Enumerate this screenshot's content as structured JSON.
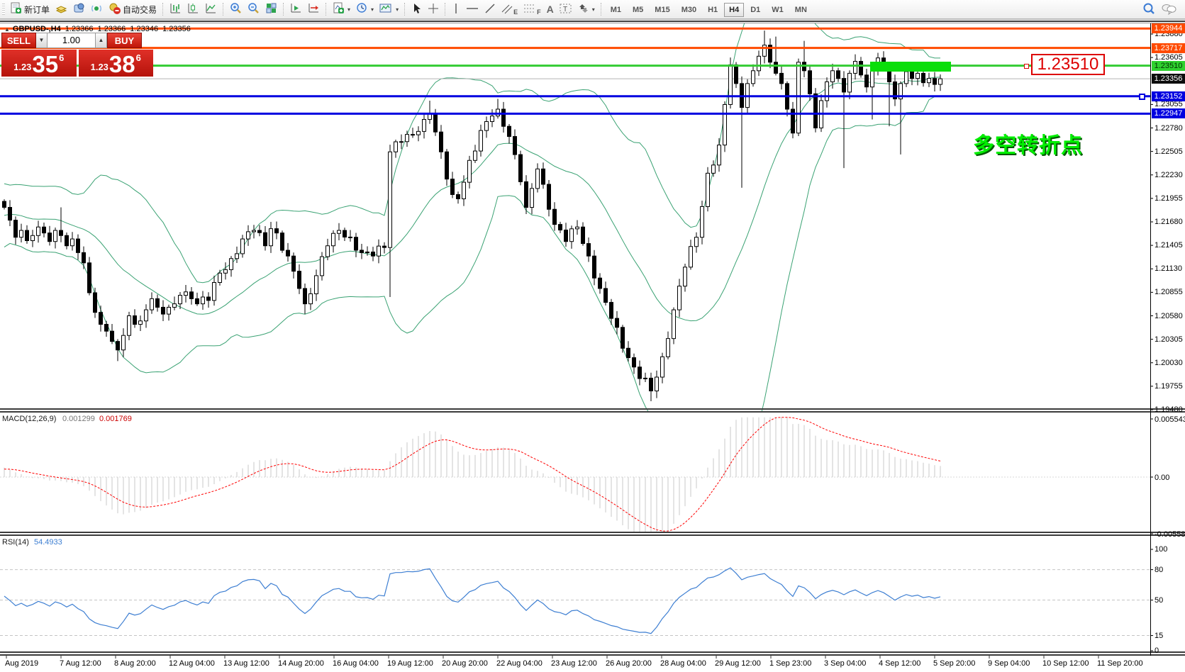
{
  "toolbar": {
    "new_order_label": "新订单",
    "autotrading_label": "自动交易",
    "channel_letter": "E",
    "fibo_letter": "F",
    "text_letter": "A",
    "label_letter": "T",
    "timeframes": [
      "M1",
      "M5",
      "M15",
      "M30",
      "H1",
      "H4",
      "D1",
      "W1",
      "MN"
    ],
    "active_timeframe": "H4"
  },
  "chart": {
    "collapse_arrow": "▲",
    "symbol_period": "GBPUSD-,H4",
    "ohlc": [
      "1.23366",
      "1.23366",
      "1.23346",
      "1.23356"
    ]
  },
  "one_click": {
    "sell_label": "SELL",
    "buy_label": "BUY",
    "volume": "1.00",
    "down_arrow": "▼",
    "up_arrow": "▲",
    "sell_small": "1.23",
    "sell_big": "35",
    "sell_sup": "6",
    "buy_small": "1.23",
    "buy_big": "38",
    "buy_sup": "6"
  },
  "annotations": {
    "turning_point_text": "多空转折点",
    "price_callout": "1.23510"
  },
  "price_axis": {
    "ticks": [
      "1.23880",
      "1.23605",
      "1.23055",
      "1.22780",
      "1.22505",
      "1.22230",
      "1.21955",
      "1.21680",
      "1.21405",
      "1.21130",
      "1.20855",
      "1.20580",
      "1.20305",
      "1.20030",
      "1.19755",
      "1.19480"
    ],
    "tick_values": [
      1.2388,
      1.23605,
      1.23055,
      1.2278,
      1.22505,
      1.2223,
      1.21955,
      1.2168,
      1.21405,
      1.2113,
      1.20855,
      1.2058,
      1.20305,
      1.2003,
      1.19755,
      1.1948
    ],
    "badges": [
      {
        "text": "1.23944",
        "price": 1.23944,
        "bg": "#ff4a00",
        "fg": "#ffffff"
      },
      {
        "text": "1.23717",
        "price": 1.23717,
        "bg": "#ff4a00",
        "fg": "#ffffff"
      },
      {
        "text": "1.23510",
        "price": 1.2351,
        "bg": "#2fd12f",
        "fg": "#033003"
      },
      {
        "text": "1.23356",
        "price": 1.23356,
        "bg": "#0d0d0d",
        "fg": "#ffffff"
      },
      {
        "text": "1.23152",
        "price": 1.23152,
        "bg": "#0000e0",
        "fg": "#ffffff"
      },
      {
        "text": "1.22947",
        "price": 1.22947,
        "bg": "#0000e0",
        "fg": "#ffffff"
      }
    ]
  },
  "macd_panel": {
    "label": "MACD(12,26,9)",
    "value_main": "0.001299",
    "value_signal": "0.001769",
    "axis": [
      {
        "text": "0.005543",
        "y": 586
      },
      {
        "text": "0.00",
        "y": 668
      },
      {
        "text": "-0.005583",
        "y": 748
      }
    ]
  },
  "rsi_panel": {
    "label": "RSI(14)",
    "value": "54.4933",
    "axis": [
      {
        "text": "100",
        "v": 100
      },
      {
        "text": "80",
        "v": 80
      },
      {
        "text": "50",
        "v": 50
      },
      {
        "text": "15",
        "v": 15
      },
      {
        "text": "0",
        "v": 0
      }
    ],
    "level_lines": [
      80,
      50,
      15
    ]
  },
  "time_axis": [
    "Aug 2019",
    "7 Aug 12:00",
    "8 Aug 20:00",
    "12 Aug 04:00",
    "13 Aug 12:00",
    "14 Aug 20:00",
    "16 Aug 04:00",
    "19 Aug 12:00",
    "20 Aug 20:00",
    "22 Aug 04:00",
    "23 Aug 12:00",
    "26 Aug 20:00",
    "28 Aug 04:00",
    "29 Aug 12:00",
    "1 Sep 23:00",
    "3 Sep 04:00",
    "4 Sep 12:00",
    "5 Sep 20:00",
    "9 Sep 04:00",
    "10 Sep 12:00",
    "11 Sep 20:00"
  ],
  "chart_data": {
    "type": "candlestick",
    "symbol": "GBPUSD-",
    "timeframe": "H4",
    "current_ohlc": {
      "open": 1.23366,
      "high": 1.23366,
      "low": 1.23346,
      "close": 1.23356
    },
    "bid": "1.2335",
    "ask": "1.2338",
    "y_range": {
      "top": 1.2388,
      "bottom": 1.1948
    },
    "candle_count": 166,
    "first_open": 1.2192,
    "close_anchors": [
      [
        0,
        1.2185
      ],
      [
        1,
        1.217
      ],
      [
        2,
        1.215
      ],
      [
        3,
        1.2158
      ],
      [
        4,
        1.2146
      ],
      [
        5,
        1.2152
      ],
      [
        6,
        1.2162
      ],
      [
        7,
        1.2155
      ],
      [
        8,
        1.2145
      ],
      [
        9,
        1.2158
      ],
      [
        10,
        1.2152
      ],
      [
        11,
        1.214
      ],
      [
        12,
        1.2148
      ],
      [
        13,
        1.2132
      ],
      [
        14,
        1.212
      ],
      [
        15,
        1.2085
      ],
      [
        16,
        1.2062
      ],
      [
        17,
        1.2048
      ],
      [
        18,
        1.204
      ],
      [
        19,
        1.2028
      ],
      [
        20,
        1.2018
      ],
      [
        21,
        1.2035
      ],
      [
        22,
        1.2058
      ],
      [
        23,
        1.2048
      ],
      [
        24,
        1.2052
      ],
      [
        25,
        1.2065
      ],
      [
        26,
        1.2078
      ],
      [
        27,
        1.2068
      ],
      [
        28,
        1.206
      ],
      [
        29,
        1.2068
      ],
      [
        30,
        1.2072
      ],
      [
        31,
        1.2082
      ],
      [
        32,
        1.2086
      ],
      [
        33,
        1.2078
      ],
      [
        34,
        1.2072
      ],
      [
        35,
        1.208
      ],
      [
        36,
        1.2076
      ],
      [
        38,
        1.2108
      ],
      [
        40,
        1.2125
      ],
      [
        42,
        1.2148
      ],
      [
        44,
        1.2158
      ],
      [
        46,
        1.214
      ],
      [
        47,
        1.216
      ],
      [
        48,
        1.2155
      ],
      [
        50,
        1.2128
      ],
      [
        52,
        1.209
      ],
      [
        53,
        1.2072
      ],
      [
        55,
        1.2105
      ],
      [
        57,
        1.214
      ],
      [
        59,
        1.2158
      ],
      [
        61,
        1.215
      ],
      [
        63,
        1.2132
      ],
      [
        65,
        1.2128
      ],
      [
        67,
        1.2138
      ],
      [
        68,
        1.225
      ],
      [
        70,
        1.2262
      ],
      [
        72,
        1.227
      ],
      [
        74,
        1.2288
      ],
      [
        75,
        1.2295
      ],
      [
        77,
        1.225
      ],
      [
        79,
        1.22
      ],
      [
        80,
        1.2195
      ],
      [
        82,
        1.224
      ],
      [
        84,
        1.2275
      ],
      [
        86,
        1.2292
      ],
      [
        87,
        1.23
      ],
      [
        89,
        1.2268
      ],
      [
        91,
        1.2215
      ],
      [
        92,
        1.2185
      ],
      [
        94,
        1.223
      ],
      [
        95,
        1.2212
      ],
      [
        97,
        1.2165
      ],
      [
        99,
        1.2145
      ],
      [
        101,
        1.2162
      ],
      [
        103,
        1.2128
      ],
      [
        105,
        1.209
      ],
      [
        107,
        1.2055
      ],
      [
        109,
        1.202
      ],
      [
        111,
        1.1998
      ],
      [
        113,
        1.1985
      ],
      [
        114,
        1.197
      ],
      [
        116,
        1.201
      ],
      [
        118,
        1.2065
      ],
      [
        120,
        1.2115
      ],
      [
        122,
        1.215
      ],
      [
        124,
        1.2225
      ],
      [
        126,
        1.2258
      ],
      [
        128,
        1.2352
      ],
      [
        129,
        1.233
      ],
      [
        130,
        1.2302
      ],
      [
        131,
        1.233
      ],
      [
        132,
        1.2345
      ],
      [
        133,
        1.2362
      ],
      [
        134,
        1.2375
      ],
      [
        135,
        1.2355
      ],
      [
        136,
        1.2342
      ],
      [
        137,
        1.233
      ],
      [
        138,
        1.23
      ],
      [
        139,
        1.2272
      ],
      [
        140,
        1.2355
      ],
      [
        141,
        1.2345
      ],
      [
        142,
        1.2318
      ],
      [
        143,
        1.2278
      ],
      [
        144,
        1.231
      ],
      [
        145,
        1.2332
      ],
      [
        146,
        1.2345
      ],
      [
        147,
        1.2336
      ],
      [
        148,
        1.232
      ],
      [
        149,
        1.2342
      ],
      [
        150,
        1.2356
      ],
      [
        151,
        1.234
      ],
      [
        152,
        1.2326
      ],
      [
        153,
        1.2346
      ],
      [
        154,
        1.236
      ],
      [
        155,
        1.235
      ],
      [
        156,
        1.2332
      ],
      [
        157,
        1.2312
      ],
      [
        158,
        1.233
      ],
      [
        159,
        1.2344
      ],
      [
        160,
        1.2336
      ],
      [
        161,
        1.2342
      ],
      [
        162,
        1.2331
      ],
      [
        163,
        1.2336
      ],
      [
        164,
        1.2329
      ],
      [
        165,
        1.23356
      ]
    ],
    "wick_overrides": [
      [
        10,
        "high",
        1.2185
      ],
      [
        20,
        "low",
        1.2005
      ],
      [
        47,
        "high",
        1.2168
      ],
      [
        53,
        "low",
        1.206
      ],
      [
        68,
        "low",
        1.208
      ],
      [
        75,
        "high",
        1.231
      ],
      [
        87,
        "high",
        1.2312
      ],
      [
        114,
        "low",
        1.1958
      ],
      [
        128,
        "high",
        1.236
      ],
      [
        130,
        "low",
        1.2208
      ],
      [
        134,
        "high",
        1.2392
      ],
      [
        136,
        "high",
        1.2385
      ],
      [
        141,
        "high",
        1.238
      ],
      [
        148,
        "low",
        1.2231
      ],
      [
        153,
        "low",
        1.2288
      ],
      [
        156,
        "low",
        1.228
      ],
      [
        158,
        "low",
        1.2247
      ]
    ],
    "horizontal_lines": [
      {
        "price": 1.23944,
        "color": "#ff4a00",
        "width": 3
      },
      {
        "price": 1.23717,
        "color": "#ff4a00",
        "width": 3
      },
      {
        "price": 1.2351,
        "color": "#33cc33",
        "width": 3
      },
      {
        "price": 1.23152,
        "color": "#0000e0",
        "width": 3
      },
      {
        "price": 1.22947,
        "color": "#0000e0",
        "width": 3
      }
    ],
    "current_price_line": {
      "price": 1.23356,
      "color": "#b4b4b4"
    },
    "green_zone": {
      "price_top": 1.23556,
      "price_bottom": 1.2344,
      "x_from_index": 153,
      "x_to_index": 167,
      "color": "#0ade0a"
    },
    "bollinger": {
      "period": 20,
      "deviation": 2,
      "color": "#3aa273"
    },
    "macd": {
      "fast": 12,
      "slow": 26,
      "signal": 9,
      "main_value": 0.001299,
      "signal_value": 0.001769,
      "scale_max": 0.005543,
      "scale_min": -0.005583,
      "hist_color": "#c8c8c8",
      "signal_color": "#ff0000"
    },
    "rsi": {
      "period": 14,
      "value": 54.4933,
      "color": "#3e7fd2",
      "levels": [
        80,
        50,
        15
      ]
    }
  }
}
